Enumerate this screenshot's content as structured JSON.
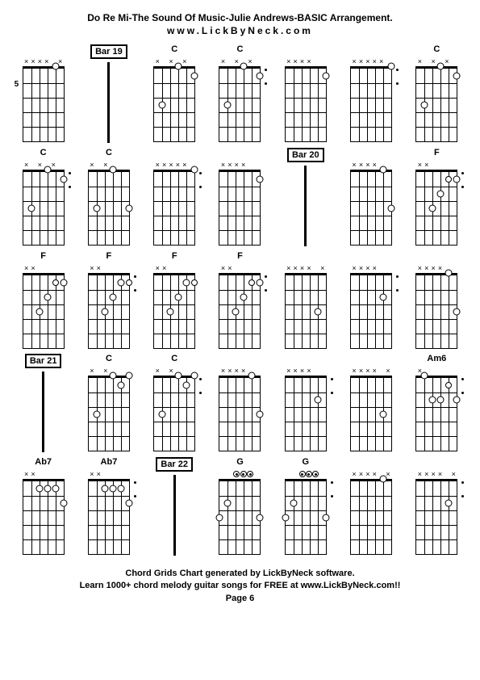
{
  "title": "Do Re Mi-The Sound Of Music-Julie Andrews-BASIC Arrangement.",
  "subtitle": "www.LickByNeck.com",
  "footer_line1": "Chord Grids Chart generated by LickByNeck software.",
  "footer_line2": "Learn 1000+ chord melody guitar songs for FREE at www.LickByNeck.com!!",
  "footer_page": "Page 6",
  "rows": 5,
  "cols": 7,
  "string_count": 6,
  "fret_count": 5,
  "cells": [
    {
      "type": "chord",
      "label": "",
      "fretNum": "5",
      "markers": [
        "x",
        "x",
        "x",
        "x",
        "",
        "x"
      ],
      "dots": [
        {
          "s": 4,
          "f": 0,
          "style": "diamond"
        }
      ],
      "sideDots": false
    },
    {
      "type": "bar",
      "label": "Bar 19"
    },
    {
      "type": "chord",
      "label": "C",
      "markers": [
        "x",
        "",
        "x",
        "",
        "x",
        ""
      ],
      "dots": [
        {
          "s": 1,
          "f": 3,
          "style": "diamond"
        },
        {
          "s": 3,
          "f": 0,
          "style": "diamond"
        },
        {
          "s": 5,
          "f": 1,
          "style": "diamond"
        }
      ],
      "sideDots": false
    },
    {
      "type": "chord",
      "label": "C",
      "markers": [
        "x",
        "",
        "x",
        "",
        "x",
        ""
      ],
      "dots": [
        {
          "s": 1,
          "f": 3,
          "style": "diamond"
        },
        {
          "s": 3,
          "f": 0,
          "style": "diamond"
        },
        {
          "s": 5,
          "f": 1,
          "style": "diamond"
        }
      ],
      "sideDots": true
    },
    {
      "type": "chord",
      "label": "",
      "markers": [
        "x",
        "x",
        "x",
        "x",
        "",
        ""
      ],
      "dots": [
        {
          "s": 5,
          "f": 1,
          "style": "diamond"
        }
      ],
      "sideDots": false
    },
    {
      "type": "chord",
      "label": "",
      "markers": [
        "x",
        "x",
        "x",
        "x",
        "x",
        ""
      ],
      "dots": [
        {
          "s": 5,
          "f": 0,
          "style": "diamond"
        }
      ],
      "sideDots": true
    },
    {
      "type": "chord",
      "label": "C",
      "markers": [
        "x",
        "",
        "x",
        "",
        "x",
        ""
      ],
      "dots": [
        {
          "s": 1,
          "f": 3,
          "style": "diamond"
        },
        {
          "s": 3,
          "f": 0,
          "style": "diamond"
        },
        {
          "s": 5,
          "f": 1,
          "style": "diamond"
        }
      ],
      "sideDots": false
    },
    {
      "type": "chord",
      "label": "C",
      "markers": [
        "x",
        "",
        "x",
        "",
        "x",
        ""
      ],
      "dots": [
        {
          "s": 1,
          "f": 3,
          "style": "diamond"
        },
        {
          "s": 3,
          "f": 0,
          "style": "diamond"
        },
        {
          "s": 5,
          "f": 1,
          "style": "diamond"
        }
      ],
      "sideDots": true
    },
    {
      "type": "chord",
      "label": "C",
      "markers": [
        "x",
        "",
        "x",
        "",
        "",
        ""
      ],
      "dots": [
        {
          "s": 1,
          "f": 3,
          "style": "diamond"
        },
        {
          "s": 3,
          "f": 0,
          "style": "diamond"
        },
        {
          "s": 5,
          "f": 3,
          "style": "diamond"
        }
      ],
      "sideDots": false
    },
    {
      "type": "chord",
      "label": "",
      "markers": [
        "x",
        "x",
        "x",
        "x",
        "x",
        ""
      ],
      "dots": [
        {
          "s": 5,
          "f": 0,
          "style": "diamond"
        }
      ],
      "sideDots": true
    },
    {
      "type": "chord",
      "label": "",
      "markers": [
        "x",
        "x",
        "x",
        "x",
        "",
        ""
      ],
      "dots": [
        {
          "s": 5,
          "f": 1,
          "style": "diamond"
        }
      ],
      "sideDots": false
    },
    {
      "type": "bar",
      "label": "Bar 20"
    },
    {
      "type": "chord",
      "label": "",
      "markers": [
        "x",
        "x",
        "x",
        "x",
        "",
        ""
      ],
      "dots": [
        {
          "s": 4,
          "f": 0,
          "style": "diamond"
        },
        {
          "s": 5,
          "f": 3,
          "style": "diamond"
        }
      ],
      "sideDots": false
    },
    {
      "type": "chord",
      "label": "F",
      "markers": [
        "x",
        "x",
        "",
        "",
        "",
        ""
      ],
      "dots": [
        {
          "s": 2,
          "f": 3,
          "style": "diamond"
        },
        {
          "s": 3,
          "f": 2,
          "style": "diamond"
        },
        {
          "s": 4,
          "f": 1,
          "style": "ring"
        },
        {
          "s": 5,
          "f": 1,
          "style": "diamond"
        }
      ],
      "sideDots": true
    },
    {
      "type": "chord",
      "label": "F",
      "markers": [
        "x",
        "x",
        "",
        "",
        "",
        ""
      ],
      "dots": [
        {
          "s": 2,
          "f": 3,
          "style": "diamond"
        },
        {
          "s": 3,
          "f": 2,
          "style": "diamond"
        },
        {
          "s": 4,
          "f": 1,
          "style": "ring"
        },
        {
          "s": 5,
          "f": 1,
          "style": "diamond"
        }
      ],
      "sideDots": false
    },
    {
      "type": "chord",
      "label": "F",
      "markers": [
        "x",
        "x",
        "",
        "",
        "",
        ""
      ],
      "dots": [
        {
          "s": 2,
          "f": 3,
          "style": "diamond"
        },
        {
          "s": 3,
          "f": 2,
          "style": "diamond"
        },
        {
          "s": 4,
          "f": 1,
          "style": "diamond"
        },
        {
          "s": 5,
          "f": 1,
          "style": "ring"
        }
      ],
      "sideDots": true
    },
    {
      "type": "chord",
      "label": "F",
      "markers": [
        "x",
        "x",
        "",
        "",
        "",
        ""
      ],
      "dots": [
        {
          "s": 2,
          "f": 3,
          "style": "diamond"
        },
        {
          "s": 3,
          "f": 2,
          "style": "diamond"
        },
        {
          "s": 4,
          "f": 1,
          "style": "diamond"
        },
        {
          "s": 5,
          "f": 1,
          "style": "ring"
        }
      ],
      "sideDots": false
    },
    {
      "type": "chord",
      "label": "F",
      "markers": [
        "x",
        "x",
        "",
        "",
        "",
        ""
      ],
      "dots": [
        {
          "s": 2,
          "f": 3,
          "style": "diamond"
        },
        {
          "s": 3,
          "f": 2,
          "style": "diamond"
        },
        {
          "s": 4,
          "f": 1,
          "style": "ring"
        },
        {
          "s": 5,
          "f": 1,
          "style": "diamond"
        }
      ],
      "sideDots": true
    },
    {
      "type": "chord",
      "label": "",
      "markers": [
        "x",
        "x",
        "x",
        "x",
        "",
        "x"
      ],
      "dots": [
        {
          "s": 4,
          "f": 3,
          "style": "diamond"
        }
      ],
      "sideDots": false
    },
    {
      "type": "chord",
      "label": "",
      "markers": [
        "x",
        "x",
        "x",
        "x",
        "",
        ""
      ],
      "dots": [
        {
          "s": 4,
          "f": 2,
          "style": "diamond"
        }
      ],
      "sideDots": true
    },
    {
      "type": "chord",
      "label": "",
      "markers": [
        "x",
        "x",
        "x",
        "x",
        "",
        ""
      ],
      "dots": [
        {
          "s": 4,
          "f": 0,
          "style": "diamond"
        },
        {
          "s": 5,
          "f": 3,
          "style": "diamond"
        }
      ],
      "sideDots": false
    },
    {
      "type": "bar",
      "label": "Bar 21"
    },
    {
      "type": "chord",
      "label": "C",
      "markers": [
        "x",
        "",
        "x",
        "",
        "",
        ""
      ],
      "dots": [
        {
          "s": 1,
          "f": 3,
          "style": "diamond"
        },
        {
          "s": 3,
          "f": 0,
          "style": "diamond"
        },
        {
          "s": 4,
          "f": 1,
          "style": "diamond"
        },
        {
          "s": 5,
          "f": 0,
          "style": "diamond"
        }
      ],
      "sideDots": false
    },
    {
      "type": "chord",
      "label": "C",
      "markers": [
        "x",
        "",
        "x",
        "",
        "",
        ""
      ],
      "dots": [
        {
          "s": 1,
          "f": 3,
          "style": "diamond"
        },
        {
          "s": 3,
          "f": 0,
          "style": "diamond"
        },
        {
          "s": 4,
          "f": 1,
          "style": "diamond"
        },
        {
          "s": 5,
          "f": 0,
          "style": "diamond"
        }
      ],
      "sideDots": true
    },
    {
      "type": "chord",
      "label": "",
      "markers": [
        "x",
        "x",
        "x",
        "x",
        "",
        ""
      ],
      "dots": [
        {
          "s": 4,
          "f": 0,
          "style": "diamond"
        },
        {
          "s": 5,
          "f": 3,
          "style": "diamond"
        }
      ],
      "sideDots": false
    },
    {
      "type": "chord",
      "label": "",
      "markers": [
        "x",
        "x",
        "x",
        "x",
        "",
        ""
      ],
      "dots": [
        {
          "s": 4,
          "f": 2,
          "style": "diamond"
        }
      ],
      "sideDots": true
    },
    {
      "type": "chord",
      "label": "",
      "markers": [
        "x",
        "x",
        "x",
        "x",
        "",
        "x"
      ],
      "dots": [
        {
          "s": 4,
          "f": 3,
          "style": "diamond"
        }
      ],
      "sideDots": false
    },
    {
      "type": "chord",
      "label": "Am6",
      "markers": [
        "x",
        "",
        "",
        "",
        "",
        ""
      ],
      "dots": [
        {
          "s": 1,
          "f": 0,
          "style": "diamond"
        },
        {
          "s": 2,
          "f": 2,
          "style": "diamond"
        },
        {
          "s": 3,
          "f": 2,
          "style": "diamond"
        },
        {
          "s": 4,
          "f": 1,
          "style": "ring"
        },
        {
          "s": 5,
          "f": 2,
          "style": "diamond"
        }
      ],
      "sideDots": true
    },
    {
      "type": "chord",
      "label": "Ab7",
      "markers": [
        "x",
        "x",
        "",
        "",
        "",
        ""
      ],
      "dots": [
        {
          "s": 2,
          "f": 1,
          "style": "diamond"
        },
        {
          "s": 3,
          "f": 1,
          "style": "diamond"
        },
        {
          "s": 4,
          "f": 1,
          "style": "diamond"
        },
        {
          "s": 5,
          "f": 2,
          "style": "diamond"
        }
      ],
      "sideDots": false
    },
    {
      "type": "chord",
      "label": "Ab7",
      "markers": [
        "x",
        "x",
        "",
        "",
        "",
        ""
      ],
      "dots": [
        {
          "s": 2,
          "f": 1,
          "style": "diamond"
        },
        {
          "s": 3,
          "f": 1,
          "style": "diamond"
        },
        {
          "s": 4,
          "f": 1,
          "style": "diamond"
        },
        {
          "s": 5,
          "f": 2,
          "style": "diamond"
        }
      ],
      "sideDots": true
    },
    {
      "type": "bar",
      "label": "Bar 22"
    },
    {
      "type": "chord",
      "label": "G",
      "markers": [
        "",
        "",
        "o",
        "o",
        "o",
        ""
      ],
      "dots": [
        {
          "s": 0,
          "f": 3,
          "style": "diamond"
        },
        {
          "s": 1,
          "f": 2,
          "style": "diamond"
        },
        {
          "s": 5,
          "f": 3,
          "style": "diamond"
        }
      ],
      "sideDots": false
    },
    {
      "type": "chord",
      "label": "G",
      "markers": [
        "",
        "",
        "o",
        "o",
        "o",
        ""
      ],
      "dots": [
        {
          "s": 0,
          "f": 3,
          "style": "diamond"
        },
        {
          "s": 1,
          "f": 2,
          "style": "diamond"
        },
        {
          "s": 5,
          "f": 3,
          "style": "diamond"
        }
      ],
      "sideDots": true
    },
    {
      "type": "chord",
      "label": "",
      "markers": [
        "x",
        "x",
        "x",
        "x",
        "",
        "x"
      ],
      "dots": [
        {
          "s": 4,
          "f": 0,
          "style": "diamond"
        }
      ],
      "sideDots": false
    },
    {
      "type": "chord",
      "label": "",
      "markers": [
        "x",
        "x",
        "x",
        "x",
        "",
        "x"
      ],
      "dots": [
        {
          "s": 4,
          "f": 2,
          "style": "diamond"
        }
      ],
      "sideDots": true
    }
  ]
}
